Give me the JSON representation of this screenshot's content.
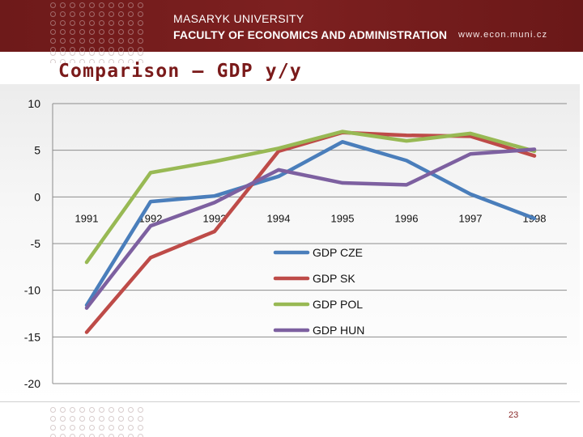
{
  "header": {
    "university": "MASARYK UNIVERSITY",
    "faculty": "FACULTY OF ECONOMICS AND ADMINISTRATION",
    "url": "www.econ.muni.cz",
    "brand_color": "#7a1e1e"
  },
  "slide": {
    "title": "Comparison – GDP y/y",
    "page_number": "23"
  },
  "chart_data": {
    "type": "line",
    "title": "",
    "xlabel": "",
    "ylabel": "",
    "categories": [
      "1991",
      "1992",
      "1993",
      "1994",
      "1995",
      "1996",
      "1997",
      "1998"
    ],
    "ylim": [
      -20,
      10
    ],
    "yticks": [
      10,
      5,
      0,
      -5,
      -10,
      -15,
      -20
    ],
    "ytick_labels": [
      "10",
      "5",
      "0",
      "-5",
      "-10",
      "-15",
      "-20"
    ],
    "grid": "horizontal",
    "legend_position": "center-right",
    "series": [
      {
        "name": "GDP CZE",
        "color": "#4a7ebb",
        "values": [
          -11.6,
          -0.5,
          0.1,
          2.2,
          5.9,
          3.9,
          0.3,
          -2.3
        ]
      },
      {
        "name": "GDP SK",
        "color": "#be4b48",
        "values": [
          -14.5,
          -6.5,
          -3.7,
          4.9,
          6.9,
          6.6,
          6.5,
          4.4
        ]
      },
      {
        "name": "GDP POL",
        "color": "#98b954",
        "values": [
          -7.0,
          2.6,
          3.8,
          5.2,
          7.0,
          6.0,
          6.8,
          4.9
        ]
      },
      {
        "name": "GDP HUN",
        "color": "#7d60a0",
        "values": [
          -11.9,
          -3.1,
          -0.6,
          2.9,
          1.5,
          1.3,
          4.6,
          5.1
        ]
      }
    ]
  }
}
